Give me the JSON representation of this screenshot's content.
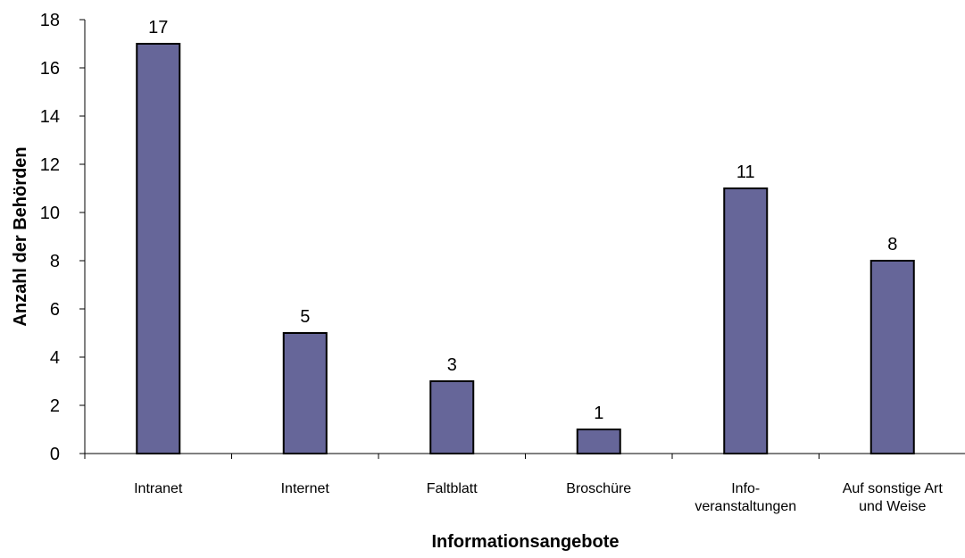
{
  "chart_data": {
    "type": "bar",
    "title": "",
    "xlabel": "Informationsangebote",
    "ylabel": "Anzahl der Behörden",
    "categories": [
      [
        "Intranet"
      ],
      [
        "Internet"
      ],
      [
        "Faltblatt"
      ],
      [
        "Broschüre"
      ],
      [
        "Info-",
        "veranstaltungen"
      ],
      [
        "Auf sonstige Art",
        "und Weise"
      ]
    ],
    "values": [
      17,
      5,
      3,
      1,
      11,
      8
    ],
    "data_labels": [
      "17",
      "5",
      "3",
      "1",
      "11",
      "8"
    ],
    "ylim": [
      0,
      18
    ],
    "yticks": [
      0,
      2,
      4,
      6,
      8,
      10,
      12,
      14,
      16,
      18
    ],
    "grid": false,
    "legend": "none",
    "colors": {
      "bar_fill": "#666699",
      "bar_stroke": "#000000",
      "axis": "#000000"
    }
  }
}
